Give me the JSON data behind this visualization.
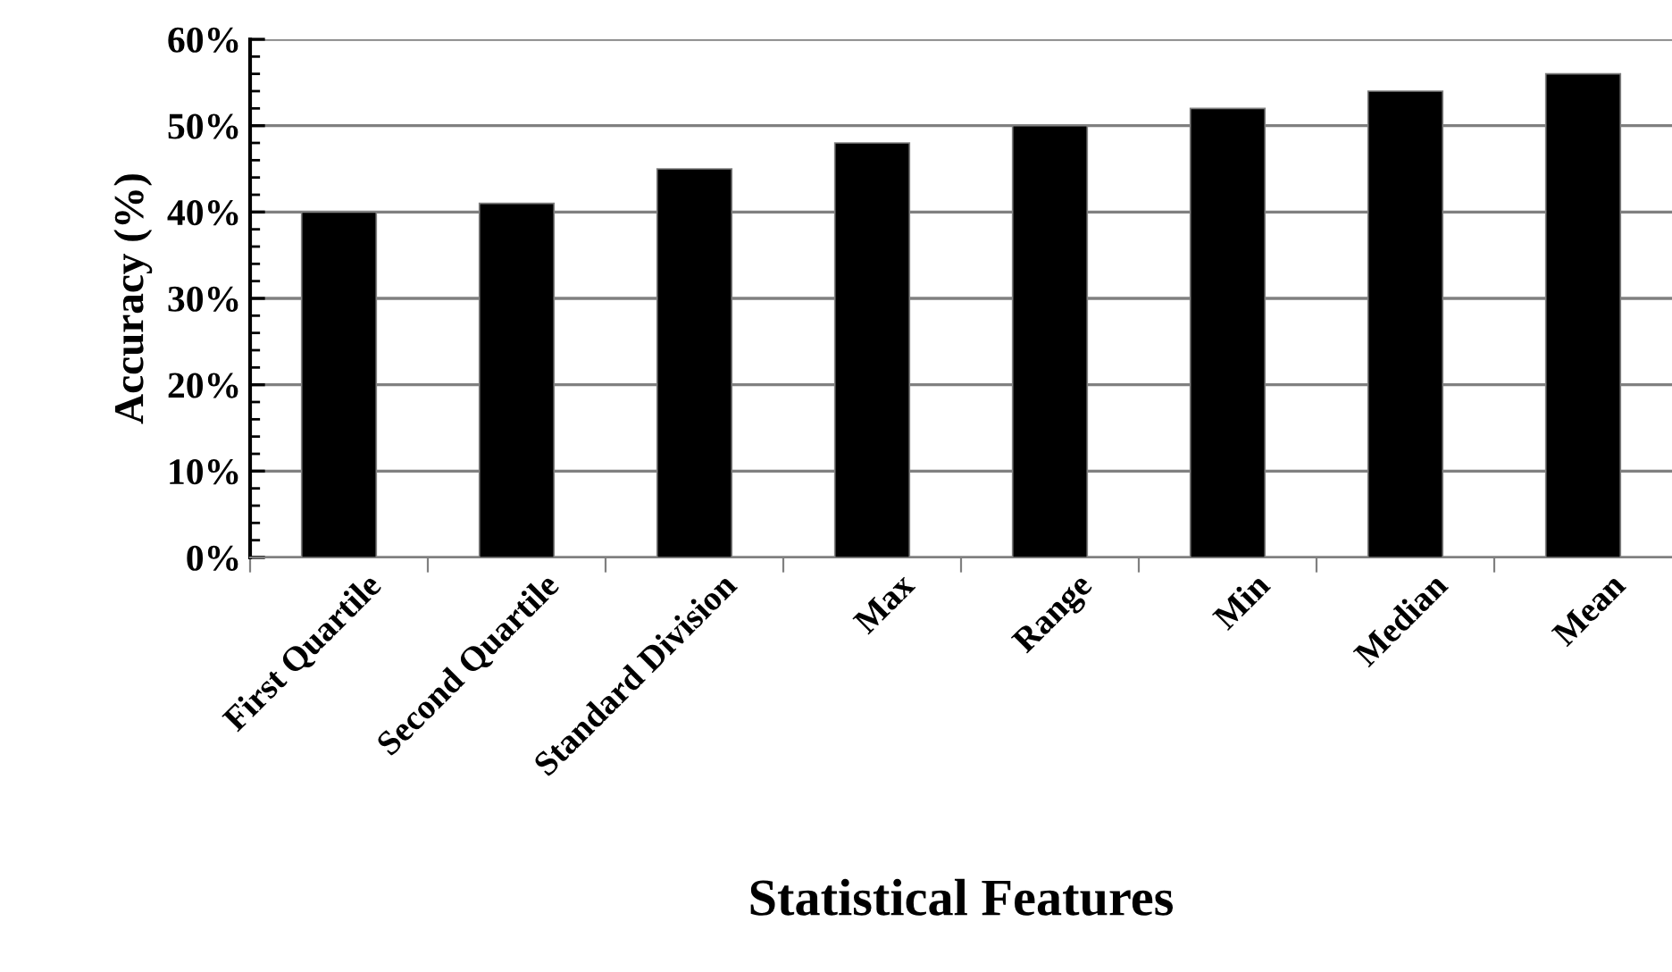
{
  "chart_data": {
    "type": "bar",
    "xlabel": "Statistical Features",
    "ylabel": "Accuracy (%)",
    "categories": [
      "First Quartile",
      "Second Quartile",
      "Standard Division",
      "Max",
      "Range",
      "Min",
      "Median",
      "Mean"
    ],
    "values": [
      40,
      41,
      45,
      48,
      50,
      52,
      54,
      56
    ],
    "color": "#000000",
    "ylim": [
      0,
      60
    ],
    "yticks": [
      {
        "value": 0,
        "label": "0%"
      },
      {
        "value": 10,
        "label": "10%"
      },
      {
        "value": 20,
        "label": "20%"
      },
      {
        "value": 30,
        "label": "30%"
      },
      {
        "value": 40,
        "label": "40%"
      },
      {
        "value": 50,
        "label": "50%"
      },
      {
        "value": 60,
        "label": "60%"
      }
    ],
    "grid": "y"
  }
}
